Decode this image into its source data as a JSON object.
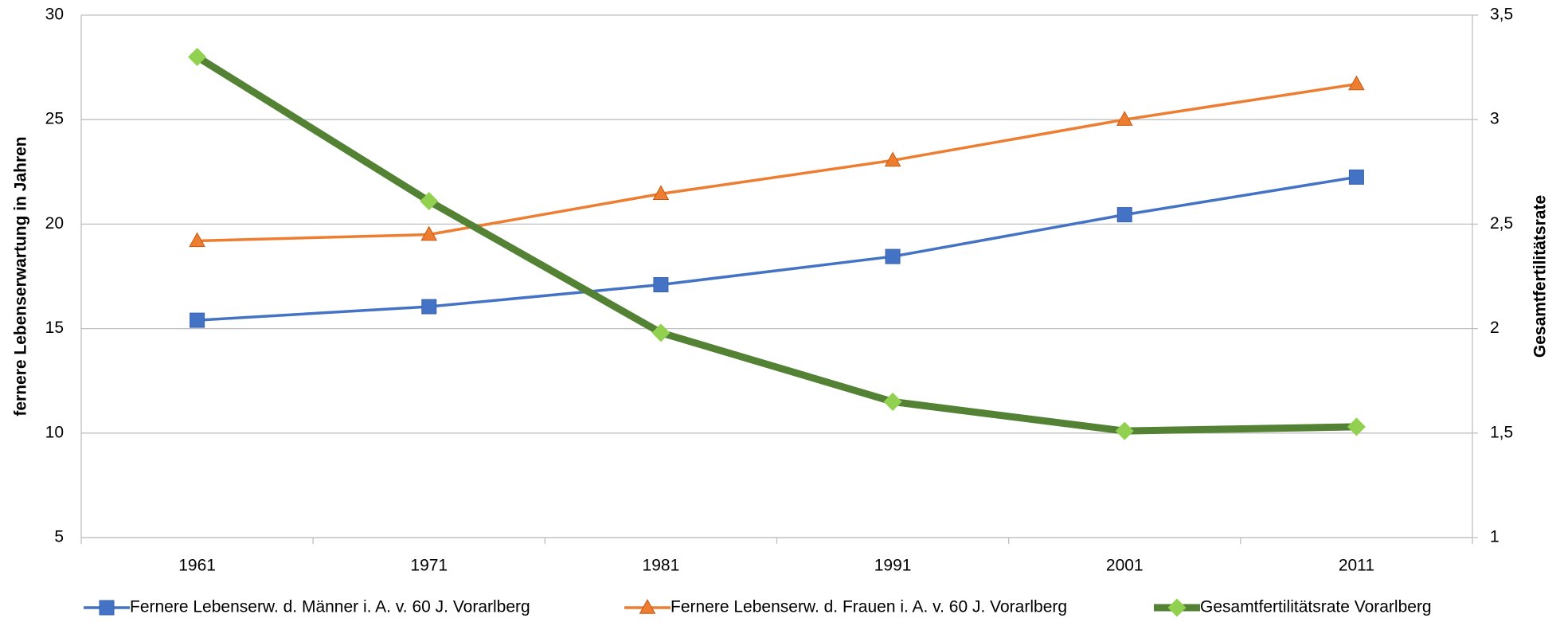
{
  "chart_data": {
    "type": "line",
    "y_label": "fernere Lebenserwartung in Jahren",
    "y2_label": "Gesamtfertilitätsrate",
    "categories": [
      "1961",
      "1971",
      "1981",
      "1991",
      "2001",
      "2011"
    ],
    "series": [
      {
        "name": "Fernere Lebenserw. d. Männer i. A. v. 60 J.  Vorarlberg",
        "color": "#4472c4",
        "marker": "square",
        "values": [
          15.4,
          16.05,
          17.1,
          18.45,
          20.45,
          22.25
        ]
      },
      {
        "name": "Fernere Lebenserw. d. Frauen i. A. v. 60 J.  Vorarlberg",
        "color": "#ed7d31",
        "marker": "triangle",
        "values": [
          19.2,
          19.5,
          21.45,
          23.05,
          25.0,
          26.7
        ]
      },
      {
        "name": "Gesamtfertilitätsrate Vorarlberg",
        "color": "#548235",
        "marker_color": "#92d050",
        "marker": "diamond",
        "axis": "y2",
        "values": [
          3.3,
          2.61,
          1.98,
          1.65,
          1.51,
          1.53
        ]
      }
    ],
    "ylim": [
      5,
      30
    ],
    "yticks": [
      5,
      10,
      15,
      20,
      25,
      30
    ],
    "y2lim": [
      1,
      3.5
    ],
    "y2ticks": [
      1,
      {
        "value": 1.5,
        "label": "1,5"
      },
      2,
      {
        "value": 2.5,
        "label": "2,5"
      },
      3,
      {
        "value": 3.5,
        "label": "3,5"
      }
    ],
    "grid": true,
    "legend": "bottom"
  }
}
